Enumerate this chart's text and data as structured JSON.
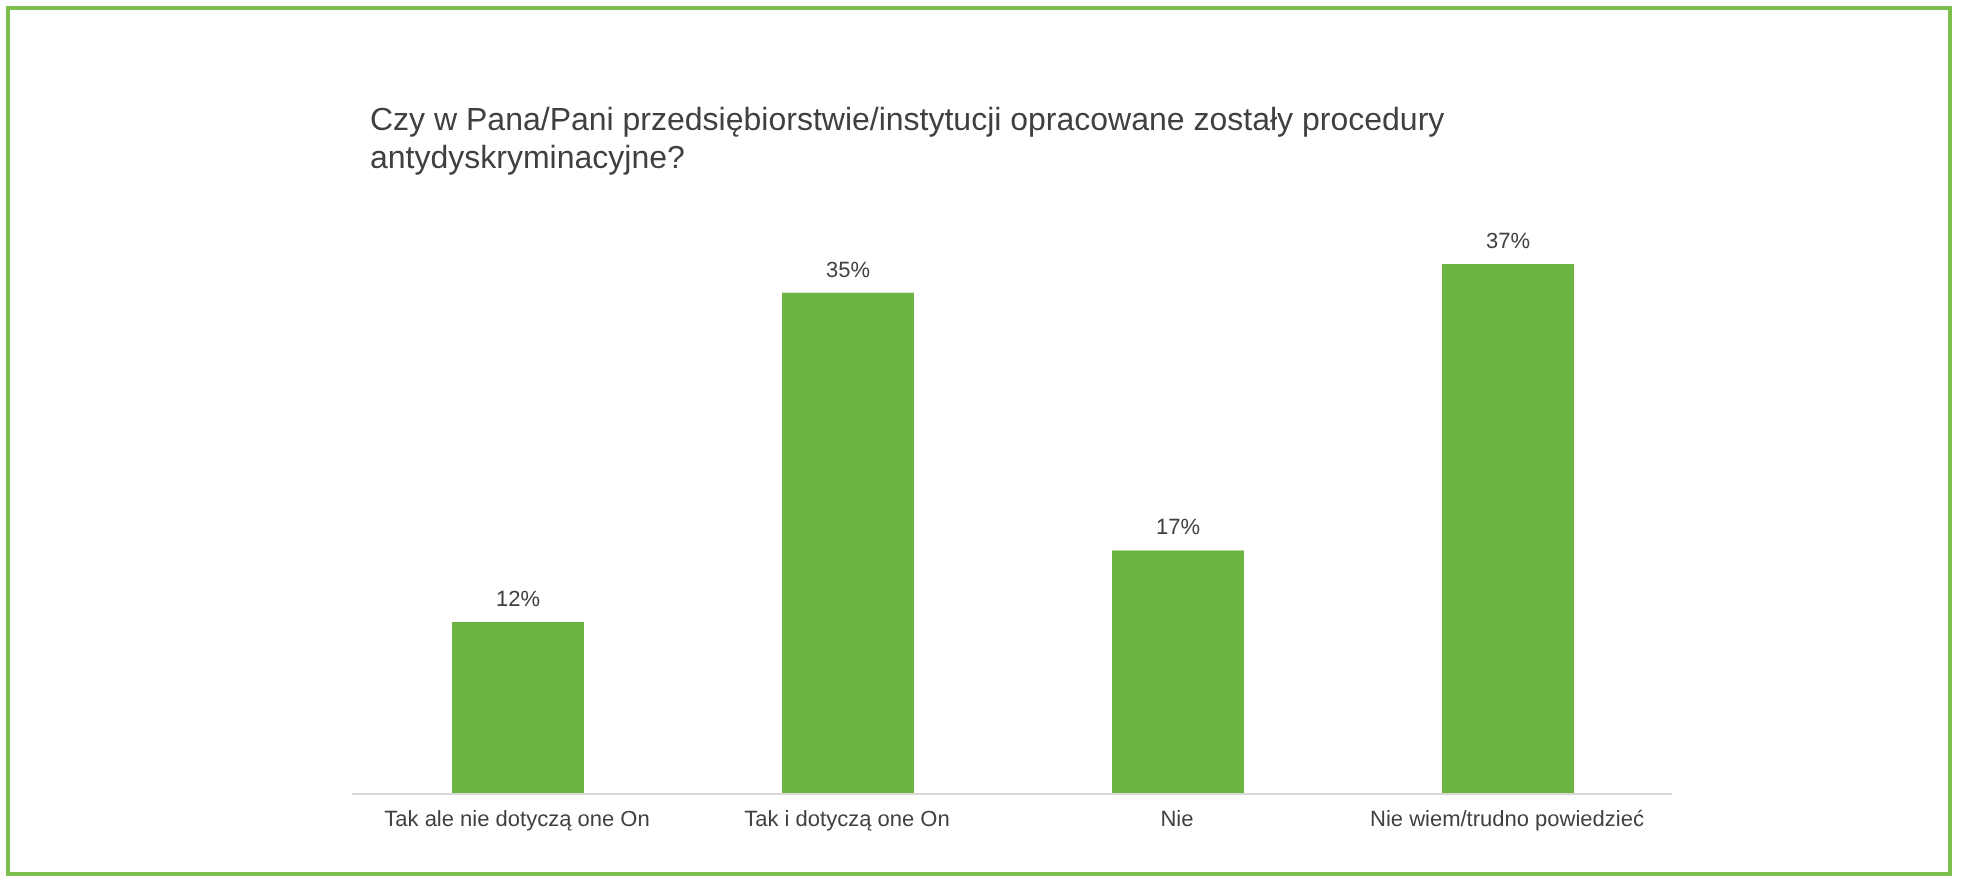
{
  "chart_data": {
    "type": "bar",
    "title": "Czy w Pana/Pani przedsiębiorstwie/instytucji opracowane zostały procedury antydyskryminacyjne?",
    "categories": [
      "Tak ale nie dotyczą one On",
      "Tak i dotyczą one On",
      "Nie",
      "Nie wiem/trudno powiedzieć"
    ],
    "values": [
      12,
      35,
      17,
      37
    ],
    "value_labels": [
      "12%",
      "35%",
      "17%",
      "37%"
    ],
    "color": "#6db33f",
    "grid": false,
    "legend": false
  }
}
